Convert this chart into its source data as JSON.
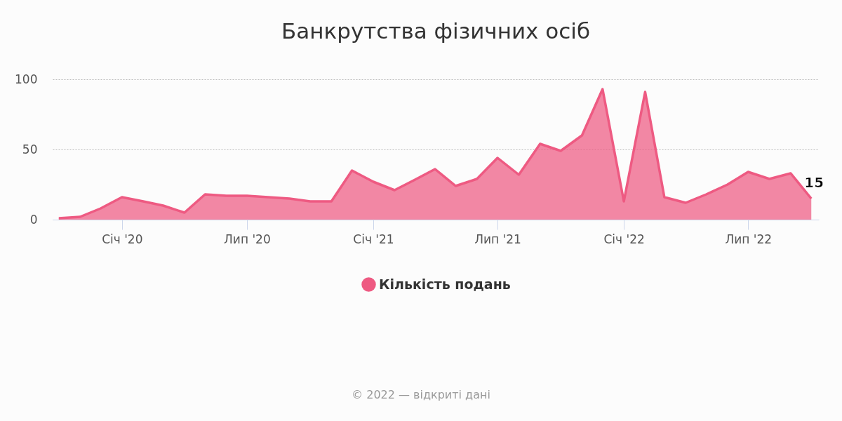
{
  "chart_data": {
    "type": "area",
    "title": "Банкрутства фізичних осіб",
    "x": [
      "2019-10",
      "2019-11",
      "2019-12",
      "2020-01",
      "2020-02",
      "2020-03",
      "2020-04",
      "2020-05",
      "2020-06",
      "2020-07",
      "2020-08",
      "2020-09",
      "2020-10",
      "2020-11",
      "2020-12",
      "2021-01",
      "2021-02",
      "2021-03",
      "2021-04",
      "2021-05",
      "2021-06",
      "2021-07",
      "2021-08",
      "2021-09",
      "2021-10",
      "2021-11",
      "2021-12",
      "2022-01",
      "2022-02",
      "2022-03",
      "2022-04",
      "2022-05",
      "2022-06",
      "2022-07",
      "2022-08",
      "2022-09",
      "2022-10"
    ],
    "series": [
      {
        "name": "Кількість подань",
        "color": "#ee5a82",
        "values": [
          1,
          2,
          8,
          16,
          13,
          10,
          5,
          18,
          17,
          17,
          16,
          15,
          13,
          13,
          35,
          27,
          21,
          28,
          36,
          24,
          29,
          44,
          32,
          54,
          49,
          60,
          93,
          13,
          91,
          16,
          12,
          18,
          25,
          34,
          29,
          33,
          15
        ],
        "value_labels": [
          null,
          null,
          null,
          null,
          null,
          null,
          null,
          null,
          null,
          null,
          null,
          null,
          null,
          null,
          null,
          null,
          null,
          null,
          null,
          null,
          null,
          null,
          null,
          null,
          null,
          null,
          null,
          null,
          null,
          null,
          null,
          null,
          null,
          null,
          null,
          null,
          "15"
        ]
      }
    ],
    "xlim": [
      "2019-09-22",
      "2022-10-12"
    ],
    "xticks": [
      {
        "value": "2020-01",
        "label": "Січ '20"
      },
      {
        "value": "2020-07",
        "label": "Лип '20"
      },
      {
        "value": "2021-01",
        "label": "Січ '21"
      },
      {
        "value": "2021-07",
        "label": "Лип '21"
      },
      {
        "value": "2022-01",
        "label": "Січ '22"
      },
      {
        "value": "2022-07",
        "label": "Лип '22"
      }
    ],
    "ylim": [
      0,
      100
    ],
    "yticks": [
      0,
      50,
      100
    ],
    "grid": "y",
    "legend": "bottom",
    "annotations": [
      "© 2022 — відкриті дані"
    ]
  }
}
